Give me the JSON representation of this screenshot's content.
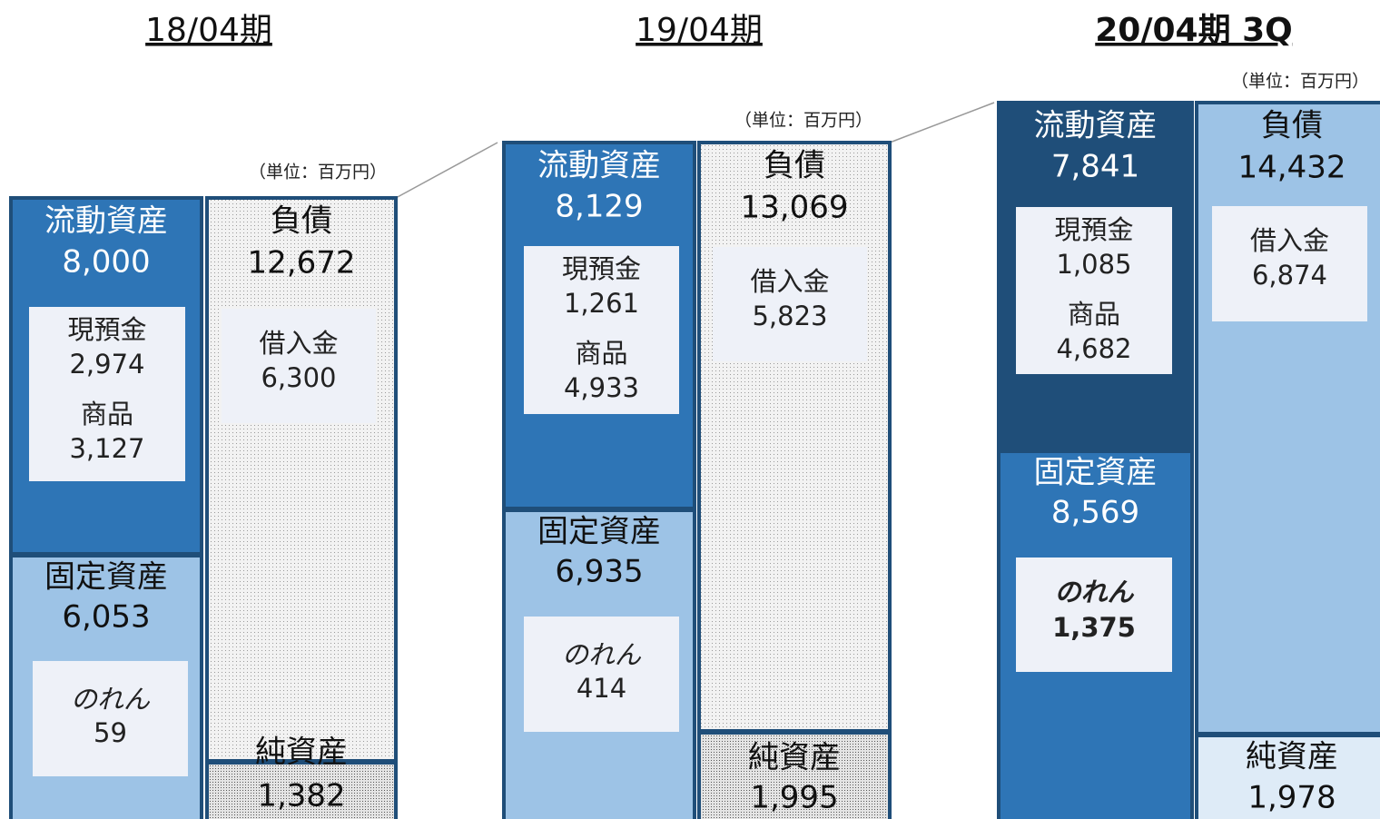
{
  "periods": [
    {
      "title": "18/04期",
      "unit": "（単位：百万円）",
      "current_assets": {
        "label": "流動資産",
        "value": "8,000",
        "items": [
          {
            "label": "現預金",
            "value": "2,974"
          },
          {
            "label": "商品",
            "value": "3,127"
          }
        ]
      },
      "fixed_assets": {
        "label": "固定資産",
        "value": "6,053",
        "goodwill": {
          "label": "のれん",
          "value": "59"
        }
      },
      "liabilities": {
        "label": "負債",
        "value": "12,672",
        "borrowings": {
          "label": "借入金",
          "value": "6,300"
        }
      },
      "net_assets": {
        "label": "純資産",
        "value": "1,382"
      }
    },
    {
      "title": "19/04期",
      "unit": "（単位：百万円）",
      "current_assets": {
        "label": "流動資産",
        "value": "8,129",
        "items": [
          {
            "label": "現預金",
            "value": "1,261"
          },
          {
            "label": "商品",
            "value": "4,933"
          }
        ]
      },
      "fixed_assets": {
        "label": "固定資産",
        "value": "6,935",
        "goodwill": {
          "label": "のれん",
          "value": "414"
        }
      },
      "liabilities": {
        "label": "負債",
        "value": "13,069",
        "borrowings": {
          "label": "借入金",
          "value": "5,823"
        }
      },
      "net_assets": {
        "label": "純資産",
        "value": "1,995"
      }
    },
    {
      "title": "20/04期 3Q",
      "unit": "（単位：百万円）",
      "current_assets": {
        "label": "流動資産",
        "value": "7,841",
        "items": [
          {
            "label": "現預金",
            "value": "1,085"
          },
          {
            "label": "商品",
            "value": "4,682"
          }
        ]
      },
      "fixed_assets": {
        "label": "固定資産",
        "value": "8,569",
        "goodwill": {
          "label": "のれん",
          "value": "1,375"
        }
      },
      "liabilities": {
        "label": "負債",
        "value": "14,432",
        "borrowings": {
          "label": "借入金",
          "value": "6,874"
        }
      },
      "net_assets": {
        "label": "純資産",
        "value": "1,978"
      }
    }
  ]
}
